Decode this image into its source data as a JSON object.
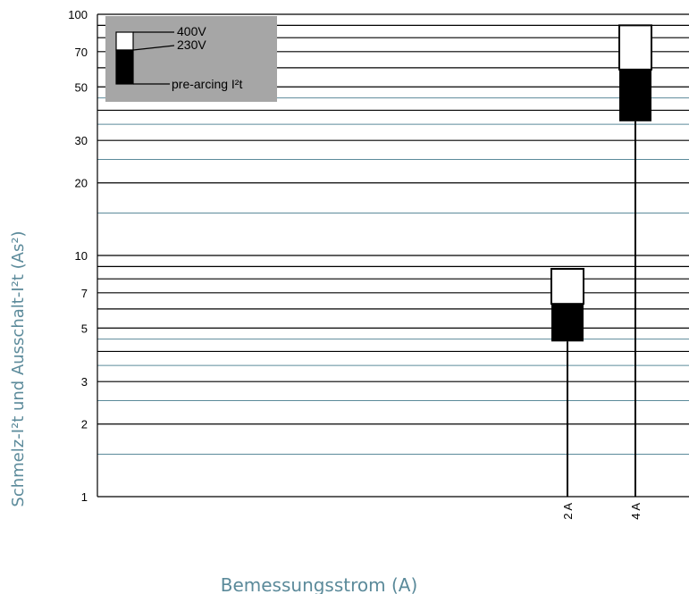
{
  "chart_data": {
    "type": "bar",
    "xlabel": "Bemessungsstrom (A)",
    "ylabel": "Schmelz-I²t und Ausschalt-I²t (As²)",
    "yscale": "log",
    "ylim": [
      1,
      100
    ],
    "yticks": [
      1,
      2,
      3,
      5,
      7,
      10,
      20,
      30,
      50,
      70,
      100
    ],
    "grid": true,
    "legend_position": "top-left",
    "categories": [
      "2 A",
      "4 A"
    ],
    "series": [
      {
        "name": "pre-arcing I²t",
        "values": [
          4.4,
          36
        ],
        "color": "#000000"
      },
      {
        "name": "230V",
        "values": [
          6.3,
          59
        ],
        "color": "#000000"
      },
      {
        "name": "400V",
        "values": [
          8.8,
          90
        ],
        "color": "#ffffff"
      }
    ],
    "legend": {
      "background": "#a6a6a6",
      "entries": [
        "400V",
        "230V",
        "pre-arcing I²t"
      ]
    }
  }
}
